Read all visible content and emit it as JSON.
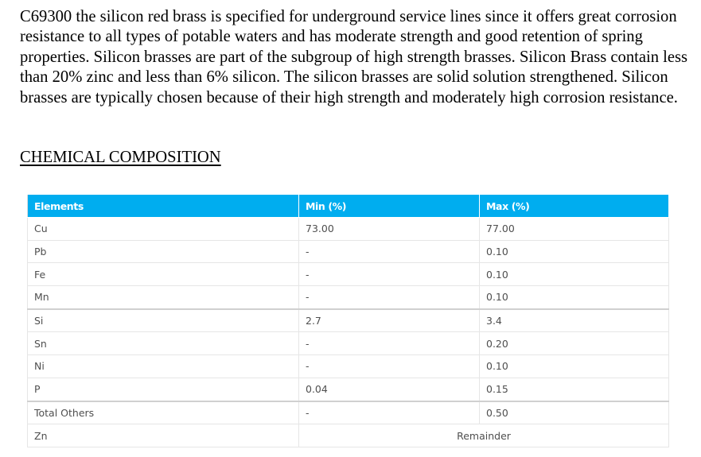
{
  "intro": "C69300 the silicon red brass is specified for underground service lines since it offers great corrosion resistance to all types of potable waters and has moderate strength and good retention of spring properties. Silicon brasses are part of the subgroup of high strength brasses. Silicon Brass contain less than 20% zinc and less than 6% silicon. The silicon brasses are solid solution strengthened.  Silicon brasses are typically chosen because of their high strength and moderately high corrosion resistance.",
  "section_heading": "CHEMICAL COMPOSITION",
  "table": {
    "header_color": "#00adef",
    "headers": [
      "Elements",
      "Min (%)",
      "Max (%)"
    ],
    "rows": [
      {
        "element": "Cu",
        "min": "73.00",
        "max": "77.00"
      },
      {
        "element": "Pb",
        "min": "-",
        "max": "0.10"
      },
      {
        "element": "Fe",
        "min": "-",
        "max": "0.10"
      },
      {
        "element": "Mn",
        "min": "-",
        "max": "0.10"
      },
      {
        "element": "Si",
        "min": "2.7",
        "max": "3.4"
      },
      {
        "element": "Sn",
        "min": "-",
        "max": "0.20"
      },
      {
        "element": "Ni",
        "min": "-",
        "max": "0.10"
      },
      {
        "element": "P",
        "min": "0.04",
        "max": "0.15"
      },
      {
        "element": "Total Others",
        "min": "-",
        "max": "0.50"
      }
    ],
    "last_row": {
      "element": "Zn",
      "value": "Remainder"
    }
  }
}
